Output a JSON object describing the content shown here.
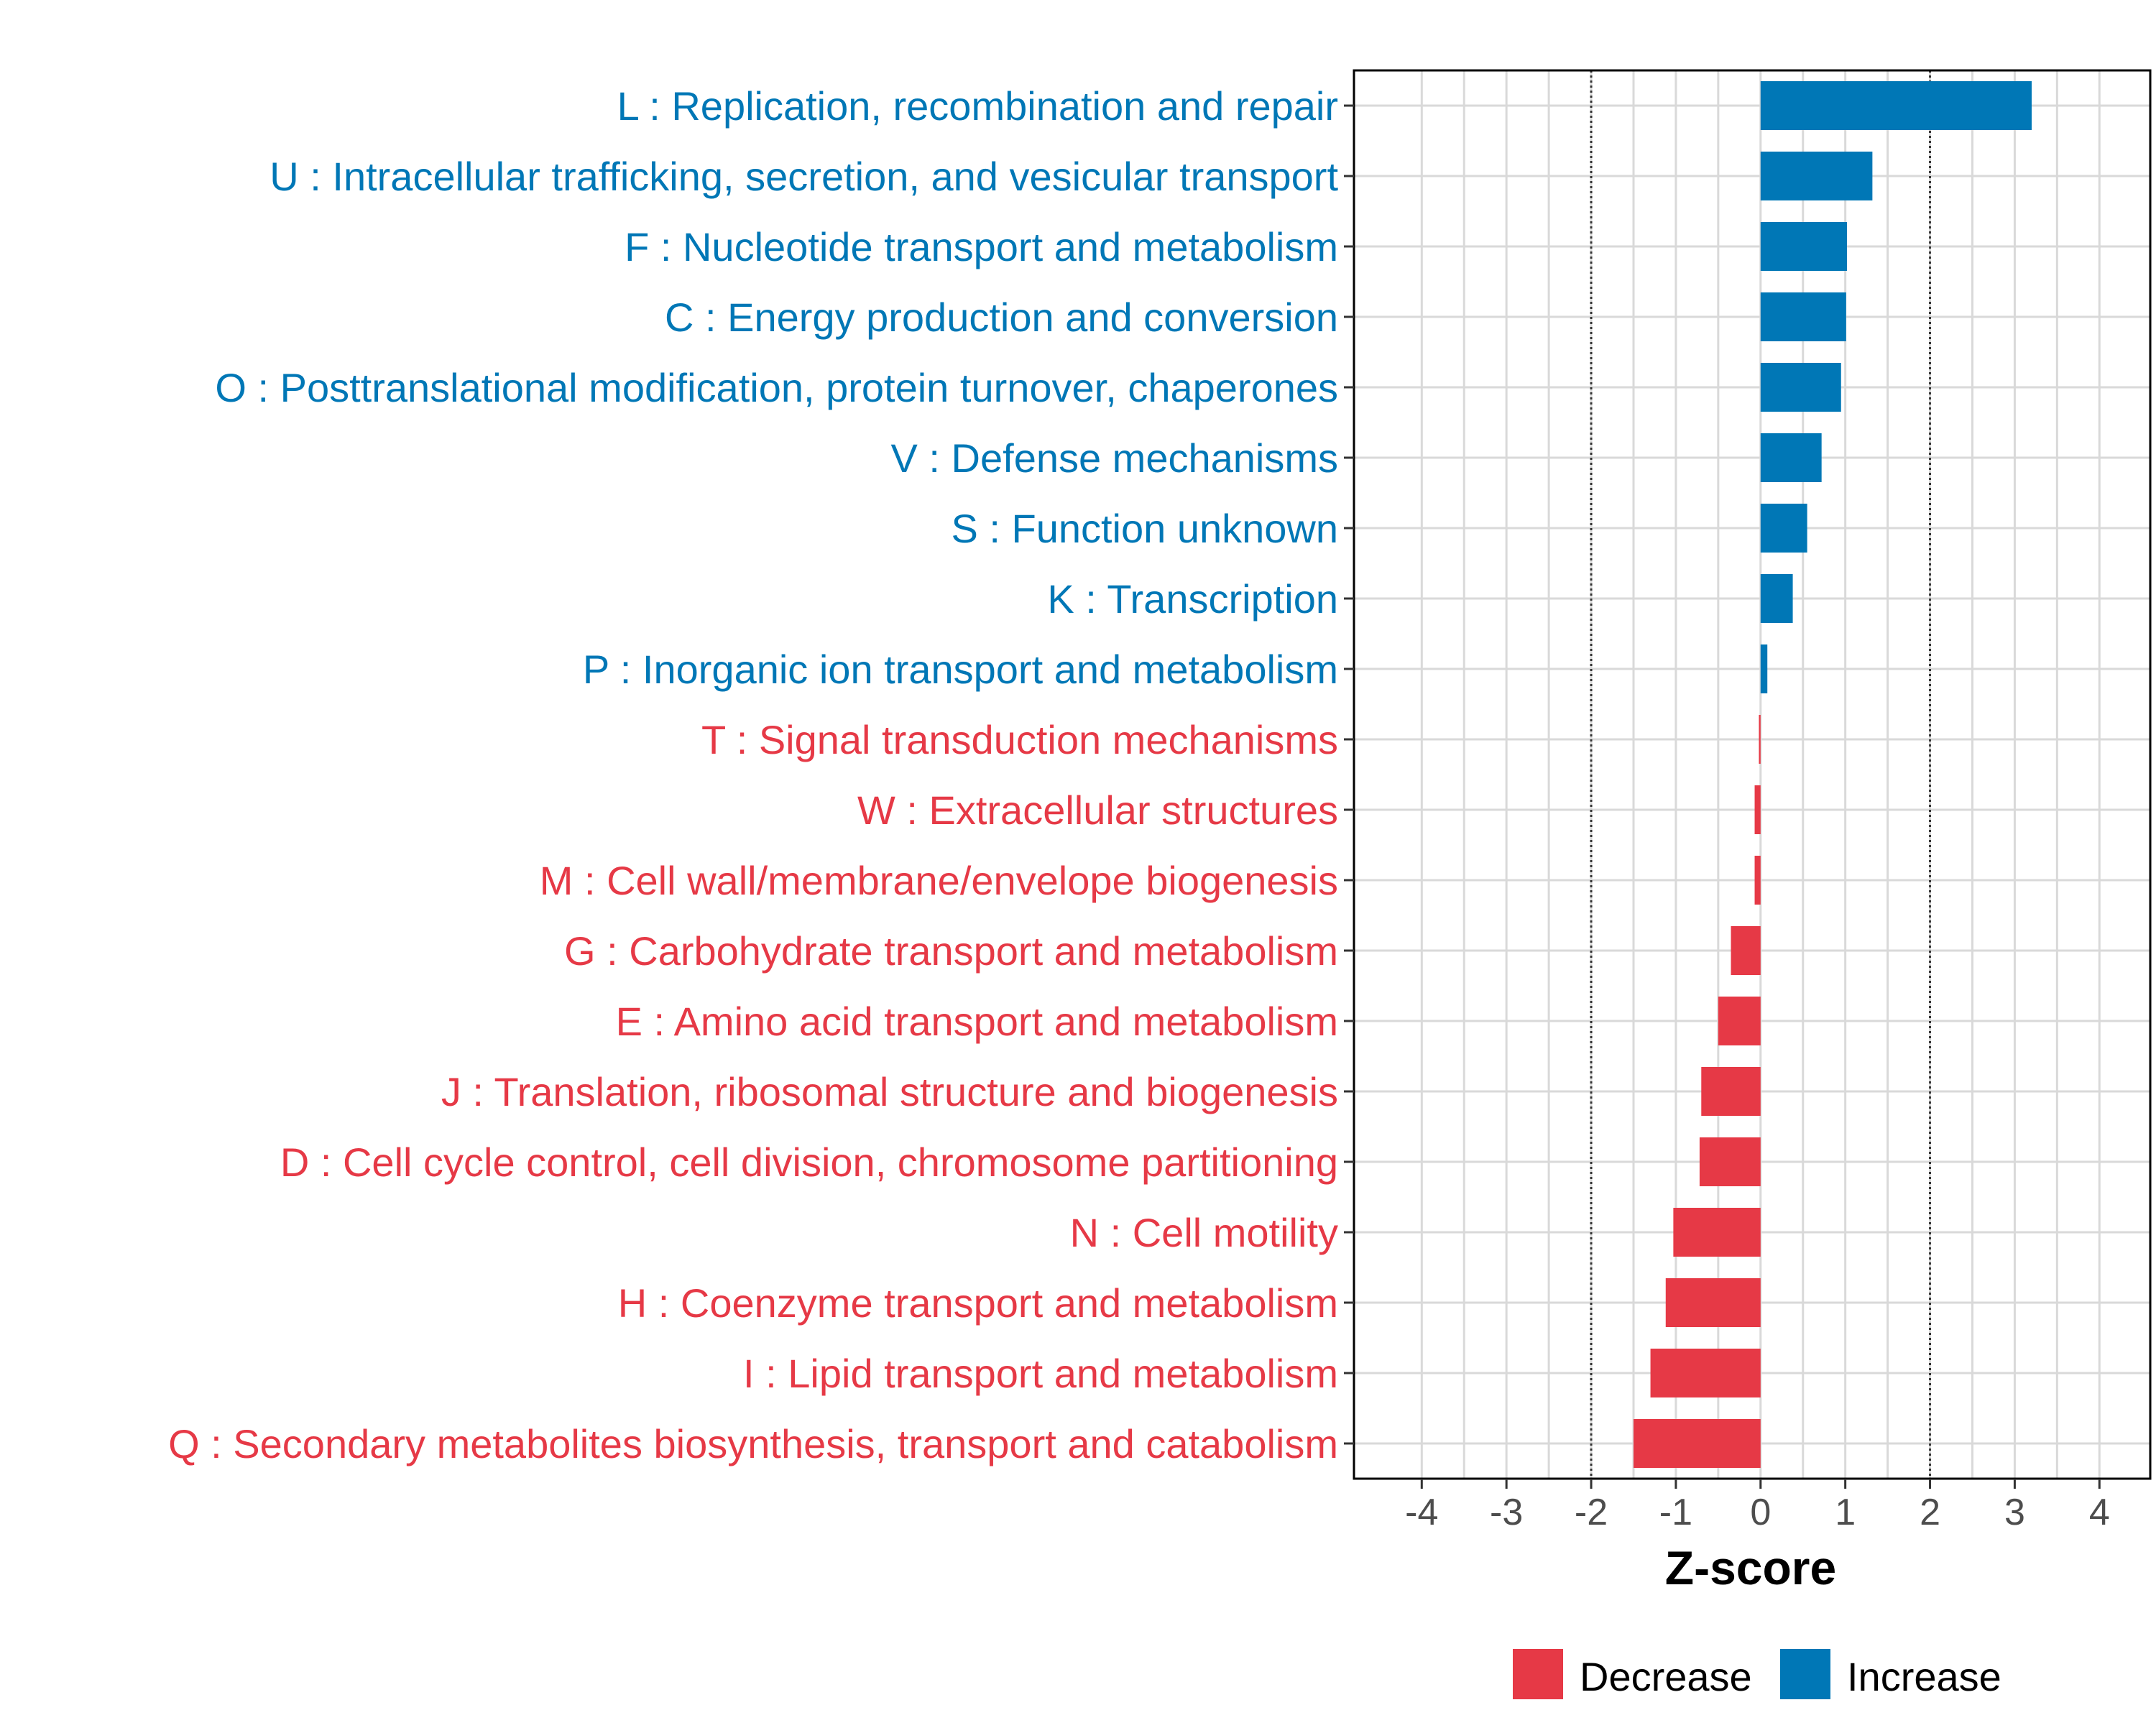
{
  "colors": {
    "decrease": "#E63946",
    "increase": "#0077B6",
    "grid": "#D9D9D9",
    "threshold": "#333333",
    "frame": "#000000"
  },
  "chart_data": {
    "type": "bar",
    "orientation": "horizontal",
    "title": "",
    "xlabel": "Z-score",
    "ylabel": "",
    "xlim": [
      -4.8,
      4.6
    ],
    "xticks": [
      -4,
      -3,
      -2,
      -1,
      0,
      1,
      2,
      3,
      4
    ],
    "xtick_labels": [
      "-4",
      "-3",
      "-2",
      "-1",
      "0",
      "1",
      "2",
      "3",
      "4"
    ],
    "threshold_lines": [
      -2,
      2
    ],
    "grid": true,
    "legend_position": "bottom",
    "legend": [
      {
        "name": "Decrease",
        "color_key": "decrease"
      },
      {
        "name": "Increase",
        "color_key": "increase"
      }
    ],
    "categories": [
      "L : Replication, recombination and repair",
      "U : Intracellular trafficking, secretion, and vesicular transport",
      "F : Nucleotide transport and metabolism",
      "C : Energy production and conversion",
      "O : Posttranslational modification, protein turnover, chaperones",
      "V : Defense mechanisms",
      "S : Function unknown",
      "K : Transcription",
      "P : Inorganic ion transport and metabolism",
      "T : Signal transduction mechanisms",
      "W : Extracellular structures",
      "M : Cell wall/membrane/envelope biogenesis",
      "G : Carbohydrate transport and metabolism",
      "E : Amino acid transport and metabolism",
      "J : Translation, ribosomal structure and biogenesis",
      "D : Cell cycle control, cell division, chromosome partitioning",
      "N : Cell motility",
      "H : Coenzyme transport and metabolism",
      "I : Lipid transport and metabolism",
      "Q : Secondary metabolites biosynthesis, transport and catabolism"
    ],
    "values": [
      3.2,
      1.32,
      1.02,
      1.01,
      0.95,
      0.72,
      0.55,
      0.38,
      0.08,
      -0.02,
      -0.07,
      -0.07,
      -0.35,
      -0.5,
      -0.7,
      -0.72,
      -1.03,
      -1.12,
      -1.3,
      -1.5
    ],
    "groups": [
      "Increase",
      "Increase",
      "Increase",
      "Increase",
      "Increase",
      "Increase",
      "Increase",
      "Increase",
      "Increase",
      "Decrease",
      "Decrease",
      "Decrease",
      "Decrease",
      "Decrease",
      "Decrease",
      "Decrease",
      "Decrease",
      "Decrease",
      "Decrease",
      "Decrease"
    ]
  }
}
